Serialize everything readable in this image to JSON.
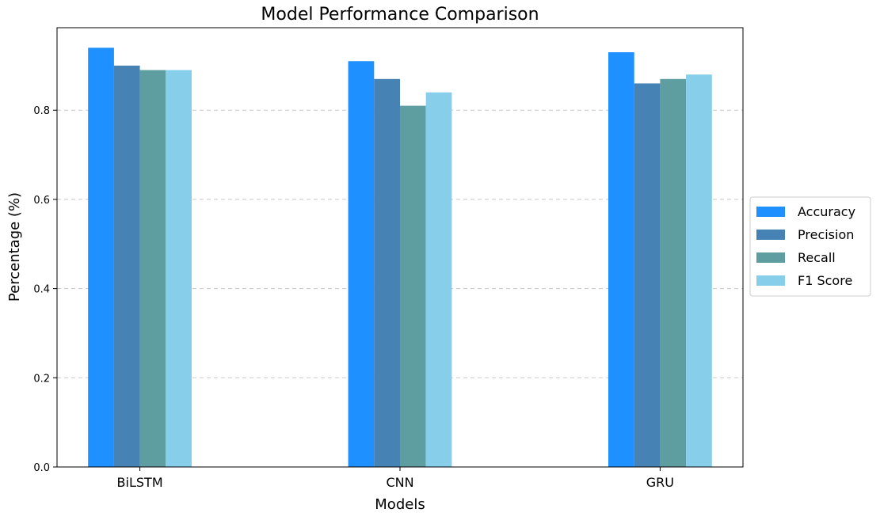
{
  "chart_data": {
    "type": "bar",
    "title": "Model Performance Comparison",
    "xlabel": "Models",
    "ylabel": "Percentage (%)",
    "categories": [
      "BiLSTM",
      "CNN",
      "GRU"
    ],
    "series": [
      {
        "name": "Accuracy",
        "color": "#1e90ff",
        "values": [
          0.94,
          0.91,
          0.93
        ]
      },
      {
        "name": "Precision",
        "color": "#4682b4",
        "values": [
          0.9,
          0.87,
          0.86
        ]
      },
      {
        "name": "Recall",
        "color": "#5f9ea0",
        "values": [
          0.89,
          0.81,
          0.87
        ]
      },
      {
        "name": "F1 Score",
        "color": "#87ceeb",
        "values": [
          0.89,
          0.84,
          0.88
        ]
      }
    ],
    "ylim": [
      0,
      0.985
    ],
    "yticks": [
      "0.0",
      "0.2",
      "0.4",
      "0.6",
      "0.8"
    ],
    "grid": "y-dashed",
    "legend_position": "right"
  }
}
